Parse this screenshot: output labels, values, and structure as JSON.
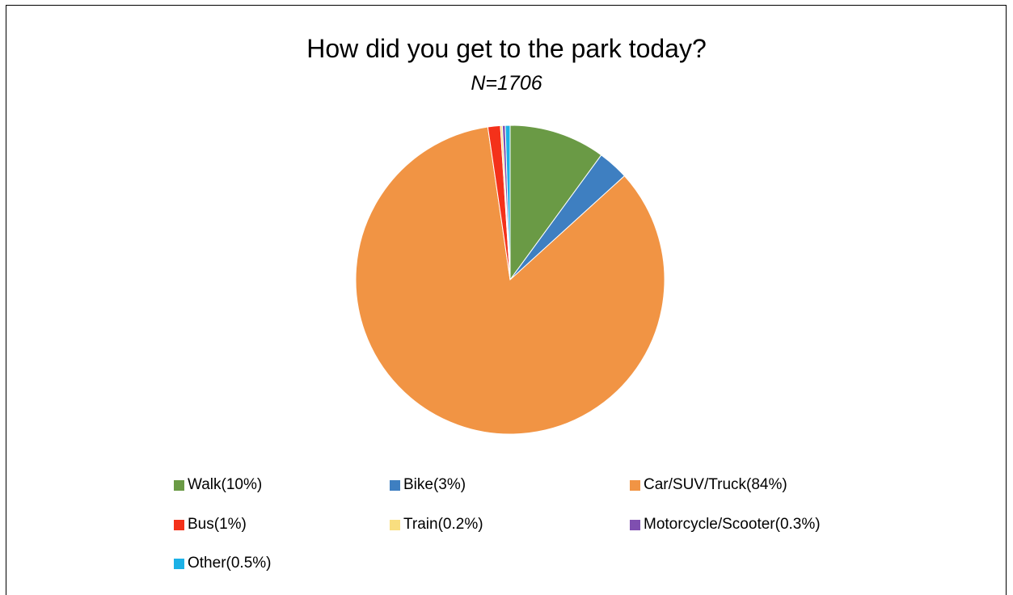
{
  "chart_data": {
    "type": "pie",
    "title": "How did you get to the park today?",
    "subtitle": "N=1706",
    "slices": [
      {
        "label": "Walk(10%)",
        "value": 10,
        "color": "#6a9a45"
      },
      {
        "label": "Bike(3%)",
        "value": 3.2,
        "color": "#3e7fc1"
      },
      {
        "label": "Car/SUV/Truck(84%)",
        "value": 84,
        "color": "#f19444"
      },
      {
        "label": "Bus(1%)",
        "value": 1.3,
        "color": "#f4311a"
      },
      {
        "label": "Train(0.2%)",
        "value": 0.2,
        "color": "#f9de7f"
      },
      {
        "label": "Motorcycle/Scooter(0.3%)",
        "value": 0.3,
        "color": "#7f4fb0"
      },
      {
        "label": "Other(0.5%)",
        "value": 0.5,
        "color": "#1cb1e6"
      }
    ],
    "legend_position": "bottom"
  }
}
